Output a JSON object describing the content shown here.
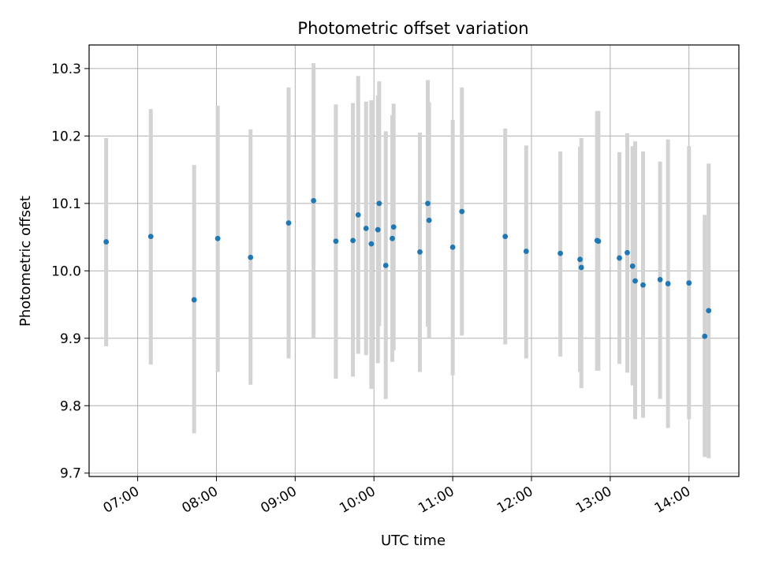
{
  "chart_data": {
    "type": "scatter",
    "title": "Photometric offset variation",
    "xlabel": "UTC time",
    "ylabel": "Photometric offset",
    "ylim": [
      9.695,
      10.335
    ],
    "xlim": [
      "06:23",
      "14:38"
    ],
    "grid": true,
    "x_ticks": [
      "07:00",
      "08:00",
      "09:00",
      "10:00",
      "11:00",
      "12:00",
      "13:00",
      "14:00"
    ],
    "y_ticks": [
      "9.7",
      "9.8",
      "9.9",
      "10.0",
      "10.1",
      "10.2",
      "10.3"
    ],
    "colors": {
      "marker": "#1f77b4",
      "errorbar": "#d3d3d3",
      "grid": "#b0b0b0"
    },
    "series": [
      {
        "points": [
          {
            "x": "06:36",
            "y": 10.043,
            "ylow": 9.888,
            "yhigh": 10.197
          },
          {
            "x": "07:10",
            "y": 10.051,
            "ylow": 9.861,
            "yhigh": 10.24
          },
          {
            "x": "07:43",
            "y": 9.957,
            "ylow": 9.759,
            "yhigh": 10.157
          },
          {
            "x": "08:01",
            "y": 10.048,
            "ylow": 9.85,
            "yhigh": 10.245
          },
          {
            "x": "08:26",
            "y": 10.02,
            "ylow": 9.831,
            "yhigh": 10.21
          },
          {
            "x": "08:55",
            "y": 10.071,
            "ylow": 9.87,
            "yhigh": 10.272
          },
          {
            "x": "09:14",
            "y": 10.104,
            "ylow": 9.9,
            "yhigh": 10.308
          },
          {
            "x": "09:31",
            "y": 10.044,
            "ylow": 9.84,
            "yhigh": 10.247
          },
          {
            "x": "09:44",
            "y": 10.045,
            "ylow": 9.843,
            "yhigh": 10.249
          },
          {
            "x": "09:48",
            "y": 10.083,
            "ylow": 9.877,
            "yhigh": 10.289
          },
          {
            "x": "09:54",
            "y": 10.063,
            "ylow": 9.875,
            "yhigh": 10.251
          },
          {
            "x": "09:58",
            "y": 10.04,
            "ylow": 9.825,
            "yhigh": 10.253
          },
          {
            "x": "10:03",
            "y": 10.061,
            "ylow": 9.863,
            "yhigh": 10.26
          },
          {
            "x": "10:04",
            "y": 10.1,
            "ylow": 9.918,
            "yhigh": 10.281
          },
          {
            "x": "10:09",
            "y": 10.008,
            "ylow": 9.81,
            "yhigh": 10.207
          },
          {
            "x": "10:14",
            "y": 10.048,
            "ylow": 9.865,
            "yhigh": 10.231
          },
          {
            "x": "10:15",
            "y": 10.065,
            "ylow": 9.882,
            "yhigh": 10.248
          },
          {
            "x": "10:35",
            "y": 10.028,
            "ylow": 9.85,
            "yhigh": 10.205
          },
          {
            "x": "10:41",
            "y": 10.1,
            "ylow": 9.917,
            "yhigh": 10.283
          },
          {
            "x": "10:42",
            "y": 10.075,
            "ylow": 9.9,
            "yhigh": 10.25
          },
          {
            "x": "11:00",
            "y": 10.035,
            "ylow": 9.845,
            "yhigh": 10.224
          },
          {
            "x": "11:07",
            "y": 10.088,
            "ylow": 9.904,
            "yhigh": 10.272
          },
          {
            "x": "11:40",
            "y": 10.051,
            "ylow": 9.891,
            "yhigh": 10.211
          },
          {
            "x": "11:56",
            "y": 10.029,
            "ylow": 9.87,
            "yhigh": 10.186
          },
          {
            "x": "12:22",
            "y": 10.026,
            "ylow": 9.873,
            "yhigh": 10.177
          },
          {
            "x": "12:37",
            "y": 10.017,
            "ylow": 9.85,
            "yhigh": 10.184
          },
          {
            "x": "12:38",
            "y": 10.005,
            "ylow": 9.826,
            "yhigh": 10.197
          },
          {
            "x": "12:50",
            "y": 10.045,
            "ylow": 9.852,
            "yhigh": 10.237
          },
          {
            "x": "12:51",
            "y": 10.044,
            "ylow": 9.852,
            "yhigh": 10.237
          },
          {
            "x": "13:07",
            "y": 10.019,
            "ylow": 9.862,
            "yhigh": 10.176
          },
          {
            "x": "13:13",
            "y": 10.027,
            "ylow": 9.849,
            "yhigh": 10.204
          },
          {
            "x": "13:17",
            "y": 10.007,
            "ylow": 9.83,
            "yhigh": 10.185
          },
          {
            "x": "13:19",
            "y": 9.985,
            "ylow": 9.78,
            "yhigh": 10.192
          },
          {
            "x": "13:25",
            "y": 9.979,
            "ylow": 9.782,
            "yhigh": 10.177
          },
          {
            "x": "13:38",
            "y": 9.987,
            "ylow": 9.81,
            "yhigh": 10.162
          },
          {
            "x": "13:44",
            "y": 9.981,
            "ylow": 9.767,
            "yhigh": 10.195
          },
          {
            "x": "14:00",
            "y": 9.982,
            "ylow": 9.78,
            "yhigh": 10.185
          },
          {
            "x": "14:12",
            "y": 9.903,
            "ylow": 9.724,
            "yhigh": 10.083
          },
          {
            "x": "14:15",
            "y": 9.941,
            "ylow": 9.722,
            "yhigh": 10.159
          }
        ]
      }
    ]
  }
}
